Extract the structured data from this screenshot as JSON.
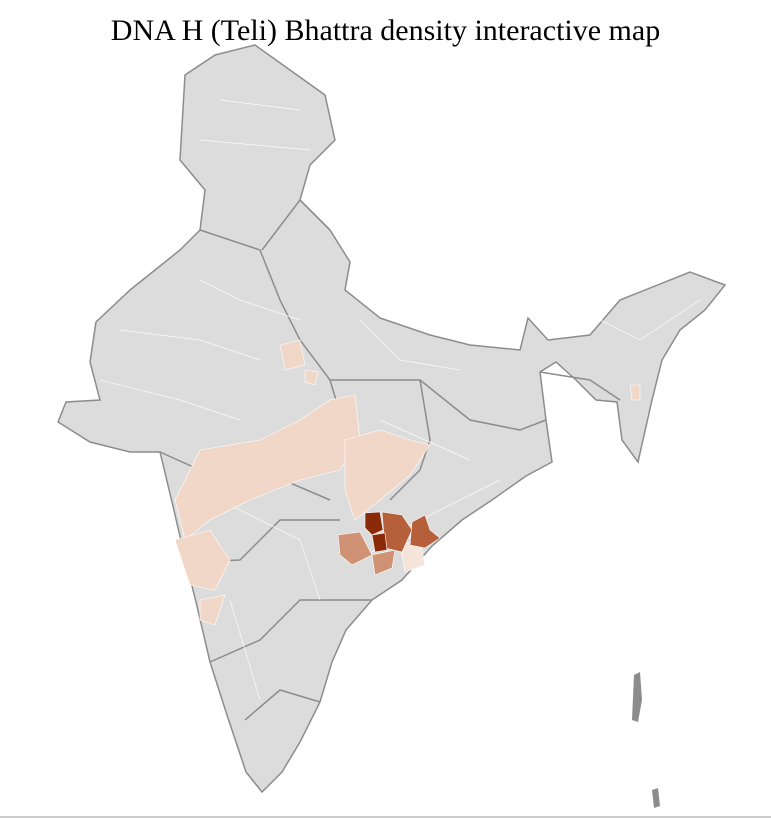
{
  "title": "DNA H (Teli) Bhattra density interactive map",
  "colors": {
    "land": "#dcdcdc",
    "state_border": "#8c8c8c",
    "district_border": "#ffffff",
    "density_very_high": "#8b2a08",
    "density_high": "#b5603b",
    "density_medium": "#cf9274",
    "density_low": "#f0d7c8",
    "density_very_low": "#f5e4da"
  }
}
